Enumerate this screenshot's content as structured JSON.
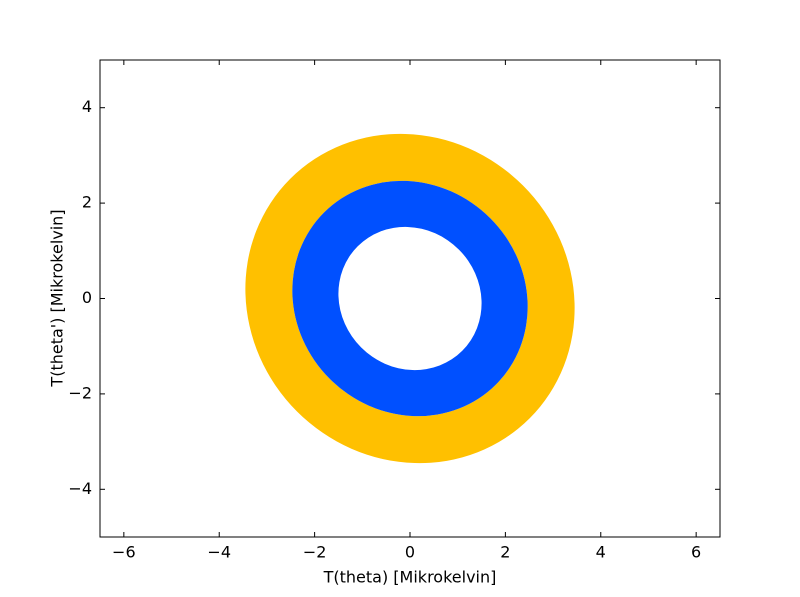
{
  "chart_data": {
    "type": "rings",
    "x_label": "T(theta) [Mikrokelvin]",
    "y_label": "T(theta') [Mikrokelvin]",
    "xlim": [
      -6.5,
      6.5
    ],
    "ylim": [
      -5,
      5
    ],
    "xticks": [
      {
        "value": -6,
        "label": "−6"
      },
      {
        "value": -4,
        "label": "−4"
      },
      {
        "value": -2,
        "label": "−2"
      },
      0,
      2,
      4,
      6
    ],
    "yticks": [
      {
        "value": -4,
        "label": "−4"
      },
      {
        "value": -2,
        "label": "−2"
      },
      0,
      2,
      4
    ],
    "center": [
      0,
      0
    ],
    "angle": -45,
    "series": [
      {
        "color": "#ffc000",
        "outer": [
          3.55,
          3.35
        ],
        "inner": [
          2.55,
          2.38
        ]
      },
      {
        "color": "#0050ff",
        "outer": [
          2.55,
          2.38
        ],
        "inner": [
          1.55,
          1.45
        ]
      }
    ]
  }
}
